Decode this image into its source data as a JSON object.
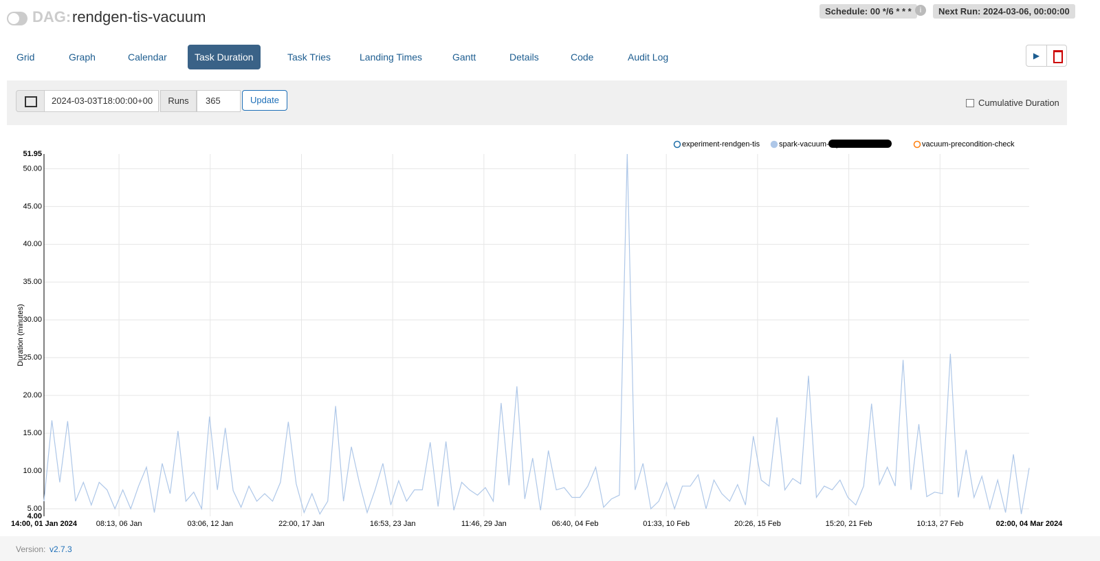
{
  "header": {
    "dag_prefix": "DAG:",
    "dag_id": "rendgen-tis-vacuum",
    "schedule": "Schedule: 00 */6 * * *",
    "next_run": "Next Run: 2024-03-06, 00:00:00"
  },
  "tabs": [
    "Grid",
    "Graph",
    "Calendar",
    "Task Duration",
    "Task Tries",
    "Landing Times",
    "Gantt",
    "Details",
    "Code",
    "Audit Log"
  ],
  "controls": {
    "base_date": "2024-03-03T18:00:00+00",
    "runs_label": "Runs",
    "runs": 365,
    "update": "Update",
    "cumulative": "Cumulative Duration"
  },
  "chart_data": {
    "type": "line",
    "y_label": "Duration (minutes)",
    "grid": true,
    "legend": "top-right",
    "x": [
      "2024-01-01T14:00",
      "2024-01-02T02:00",
      "2024-01-02T14:00",
      "2024-01-03T02:00",
      "2024-01-03T14:00",
      "2024-01-04T02:00",
      "2024-01-04T14:00",
      "2024-01-05T02:00",
      "2024-01-05T14:00",
      "2024-01-06T02:00",
      "2024-01-06T14:00",
      "2024-01-07T02:00",
      "2024-01-07T14:00",
      "2024-01-08T02:00",
      "2024-01-08T14:00",
      "2024-01-09T02:00",
      "2024-01-09T14:00",
      "2024-01-10T02:00",
      "2024-01-10T14:00",
      "2024-01-11T02:00",
      "2024-01-11T14:00",
      "2024-01-12T02:00",
      "2024-01-12T14:00",
      "2024-01-13T02:00",
      "2024-01-13T14:00",
      "2024-01-14T02:00",
      "2024-01-14T14:00",
      "2024-01-15T02:00",
      "2024-01-15T14:00",
      "2024-01-16T02:00",
      "2024-01-16T14:00",
      "2024-01-17T02:00",
      "2024-01-17T14:00",
      "2024-01-18T02:00",
      "2024-01-18T14:00",
      "2024-01-19T02:00",
      "2024-01-19T14:00",
      "2024-01-20T02:00",
      "2024-01-20T14:00",
      "2024-01-21T02:00",
      "2024-01-21T14:00",
      "2024-01-22T02:00",
      "2024-01-22T14:00",
      "2024-01-23T02:00",
      "2024-01-23T14:00",
      "2024-01-24T02:00",
      "2024-01-24T14:00",
      "2024-01-25T02:00",
      "2024-01-25T14:00",
      "2024-01-26T02:00",
      "2024-01-26T14:00",
      "2024-01-27T02:00",
      "2024-01-27T14:00",
      "2024-01-28T02:00",
      "2024-01-28T14:00",
      "2024-01-29T02:00",
      "2024-01-29T14:00",
      "2024-01-30T02:00",
      "2024-01-30T14:00",
      "2024-01-31T02:00",
      "2024-01-31T14:00",
      "2024-02-01T02:00",
      "2024-02-01T14:00",
      "2024-02-02T02:00",
      "2024-02-02T14:00",
      "2024-02-03T02:00",
      "2024-02-03T14:00",
      "2024-02-04T02:00",
      "2024-02-04T14:00",
      "2024-02-05T02:00",
      "2024-02-05T14:00",
      "2024-02-06T02:00",
      "2024-02-06T14:00",
      "2024-02-07T02:00",
      "2024-02-07T14:00",
      "2024-02-08T02:00",
      "2024-02-08T14:00",
      "2024-02-09T02:00",
      "2024-02-09T14:00",
      "2024-02-10T02:00",
      "2024-02-10T14:00",
      "2024-02-11T02:00",
      "2024-02-11T14:00",
      "2024-02-12T02:00",
      "2024-02-12T14:00",
      "2024-02-13T02:00",
      "2024-02-13T14:00",
      "2024-02-14T02:00",
      "2024-02-14T14:00",
      "2024-02-15T02:00",
      "2024-02-15T14:00",
      "2024-02-16T02:00",
      "2024-02-16T14:00",
      "2024-02-17T02:00",
      "2024-02-17T14:00",
      "2024-02-18T02:00",
      "2024-02-18T14:00",
      "2024-02-19T02:00",
      "2024-02-19T14:00",
      "2024-02-20T02:00",
      "2024-02-20T14:00",
      "2024-02-21T02:00",
      "2024-02-21T14:00",
      "2024-02-22T02:00",
      "2024-02-22T14:00",
      "2024-02-23T02:00",
      "2024-02-23T14:00",
      "2024-02-24T02:00",
      "2024-02-24T14:00",
      "2024-02-25T02:00",
      "2024-02-25T14:00",
      "2024-02-26T02:00",
      "2024-02-26T14:00",
      "2024-02-27T02:00",
      "2024-02-27T14:00",
      "2024-02-28T02:00",
      "2024-02-28T14:00",
      "2024-02-29T02:00",
      "2024-02-29T14:00",
      "2024-03-01T02:00",
      "2024-03-01T14:00",
      "2024-03-02T02:00",
      "2024-03-02T14:00",
      "2024-03-03T02:00",
      "2024-03-03T14:00",
      "2024-03-04T02:00"
    ],
    "series": [
      {
        "name": "experiment-rendgen-tis",
        "color": "#1f6fa8"
      },
      {
        "name": "spark-vacuum-log",
        "color": "#aec7e8",
        "values": [
          6,
          16.7,
          8.5,
          16.6,
          6,
          8.5,
          5.5,
          8.5,
          7.5,
          5,
          7.5,
          5,
          8,
          10.5,
          4.5,
          11,
          7,
          15.3,
          6,
          7.2,
          5,
          17.2,
          7.5,
          15.7,
          7.4,
          5.2,
          8,
          6,
          7,
          6,
          8.5,
          16.5,
          8.3,
          4.5,
          7,
          4.3,
          6,
          18.6,
          6,
          13.2,
          8.5,
          4.5,
          7.5,
          11,
          5.5,
          8.7,
          6,
          7.5,
          7.5,
          13.8,
          5.3,
          13.9,
          4.8,
          8.5,
          7.5,
          6.8,
          7.8,
          6,
          19,
          8.1,
          21.2,
          6.3,
          11.7,
          4.8,
          12.7,
          7.5,
          7.8,
          6.5,
          6.5,
          8,
          10.5,
          5.2,
          6.3,
          6.8,
          51.95,
          7.5,
          11,
          5,
          6,
          8.5,
          5,
          8,
          8,
          9.5,
          5,
          8.8,
          7,
          6,
          8.2,
          5.5,
          14.6,
          8.8,
          8,
          17.1,
          7.5,
          9,
          8.3,
          22.6,
          6.5,
          8,
          7.5,
          8.8,
          6.5,
          5.5,
          8,
          18.9,
          8.2,
          10.5,
          8,
          24.7,
          7.5,
          16.2,
          6.6,
          7.2,
          7,
          25.5,
          6.5,
          12.8,
          6.5,
          9.3,
          5,
          8.8,
          4.5,
          12.2,
          4.3,
          10.4
        ]
      },
      {
        "name": "vacuum-precondition-check",
        "color": "#ff7f0e"
      }
    ],
    "xlim": [
      "2024-01-01T14:00",
      "2024-03-04T02:00"
    ],
    "xticks": [
      {
        "value": "2024-01-01T14:00",
        "label": "14:00, 01 Jan 2024"
      },
      {
        "value": "2024-01-06T08:13",
        "label": "08:13, 06 Jan"
      },
      {
        "value": "2024-01-12T03:06",
        "label": "03:06, 12 Jan"
      },
      {
        "value": "2024-01-17T22:00",
        "label": "22:00, 17 Jan"
      },
      {
        "value": "2024-01-23T16:53",
        "label": "16:53, 23 Jan"
      },
      {
        "value": "2024-01-29T11:46",
        "label": "11:46, 29 Jan"
      },
      {
        "value": "2024-02-04T06:40",
        "label": "06:40, 04 Feb"
      },
      {
        "value": "2024-02-10T01:33",
        "label": "01:33, 10 Feb"
      },
      {
        "value": "2024-02-15T20:26",
        "label": "20:26, 15 Feb"
      },
      {
        "value": "2024-02-21T15:20",
        "label": "15:20, 21 Feb"
      },
      {
        "value": "2024-02-27T10:13",
        "label": "10:13, 27 Feb"
      },
      {
        "value": "2024-03-04T02:00",
        "label": "02:00, 04 Mar 2024"
      }
    ],
    "ylim": [
      4,
      51.95
    ],
    "yticks": [
      {
        "value": 4,
        "label": "4.00"
      },
      {
        "value": 5,
        "label": "5.00"
      },
      {
        "value": 10,
        "label": "10.00"
      },
      {
        "value": 15,
        "label": "15.00"
      },
      {
        "value": 20,
        "label": "20.00"
      },
      {
        "value": 25,
        "label": "25.00"
      },
      {
        "value": 30,
        "label": "30.00"
      },
      {
        "value": 35,
        "label": "35.00"
      },
      {
        "value": 40,
        "label": "40.00"
      },
      {
        "value": 45,
        "label": "45.00"
      },
      {
        "value": 50,
        "label": "50.00"
      },
      {
        "value": 51.95,
        "label": "51.95"
      }
    ]
  },
  "footer": {
    "version_label": "Version:",
    "version": "v2.7.3"
  }
}
